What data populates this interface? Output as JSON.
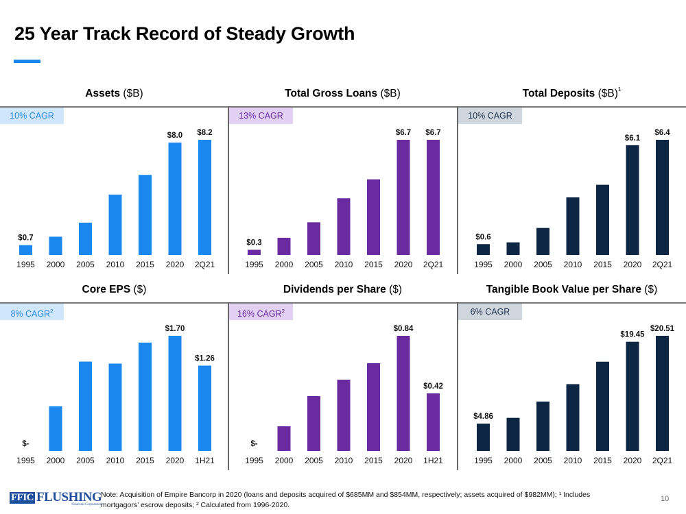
{
  "page": {
    "title": "25 Year Track Record of Steady Growth",
    "page_number": "10",
    "footnote_line1": "Note: Acquisition of Empire Bancorp in 2020 (loans and deposits acquired of $685MM and $854MM, respectively; assets acquired of $982MM); ¹ Includes",
    "footnote_line2": "mortgagors’ escrow deposits; ² Calculated from 1996-2020.",
    "logo": {
      "mark": "FFIC",
      "name": "FLUSHING",
      "sub": "Financial Corporation"
    }
  },
  "colors": {
    "blue": "#1a88ee",
    "purple": "#6a2aa0",
    "navy": "#0d2644",
    "badge_blue_bg": "#cfe6fb",
    "badge_blue_fg": "#2b8be0",
    "badge_purple_bg": "#e2d0f3",
    "badge_purple_fg": "#6a2aa0",
    "badge_gray_bg": "#cfd6dd",
    "badge_gray_fg": "#1f3550"
  },
  "chart_data": [
    {
      "type": "bar",
      "title": "Assets",
      "unit": "($B)",
      "footnote_mark": "",
      "badge": "10% CAGR",
      "badge_sup": "",
      "categories": [
        "1995",
        "2000",
        "2005",
        "2010",
        "2015",
        "2020",
        "2Q21"
      ],
      "values": [
        0.7,
        1.3,
        2.3,
        4.3,
        5.7,
        8.0,
        8.2
      ],
      "labels": [
        "$0.7",
        "",
        "",
        "",
        "",
        "$8.0",
        "$8.2"
      ],
      "color_key": "blue",
      "badge_key": "blue",
      "ylim": [
        0,
        8.2
      ]
    },
    {
      "type": "bar",
      "title": "Total Gross Loans",
      "unit": "($B)",
      "footnote_mark": "",
      "badge": "13% CAGR",
      "badge_sup": "",
      "categories": [
        "1995",
        "2000",
        "2005",
        "2010",
        "2015",
        "2020",
        "2Q21"
      ],
      "values": [
        0.3,
        1.0,
        1.9,
        3.3,
        4.4,
        6.7,
        6.7
      ],
      "labels": [
        "$0.3",
        "",
        "",
        "",
        "",
        "$6.7",
        "$6.7"
      ],
      "color_key": "purple",
      "badge_key": "purple",
      "ylim": [
        0,
        6.7
      ]
    },
    {
      "type": "bar",
      "title": "Total Deposits",
      "unit": "($B)",
      "footnote_mark": "1",
      "badge": "10% CAGR",
      "badge_sup": "",
      "categories": [
        "1995",
        "2000",
        "2005",
        "2010",
        "2015",
        "2020",
        "2Q21"
      ],
      "values": [
        0.6,
        0.7,
        1.5,
        3.2,
        3.9,
        6.1,
        6.4
      ],
      "labels": [
        "$0.6",
        "",
        "",
        "",
        "",
        "$6.1",
        "$6.4"
      ],
      "color_key": "navy",
      "badge_key": "gray",
      "ylim": [
        0,
        6.4
      ]
    },
    {
      "type": "bar",
      "title": "Core EPS",
      "unit": "($)",
      "footnote_mark": "",
      "badge": "8% CAGR",
      "badge_sup": "2",
      "categories": [
        "1995",
        "2000",
        "2005",
        "2010",
        "2015",
        "2020",
        "1H21"
      ],
      "values": [
        0,
        0.66,
        1.32,
        1.29,
        1.6,
        1.7,
        1.26
      ],
      "labels": [
        "$-",
        "",
        "",
        "",
        "",
        "$1.70",
        "$1.26"
      ],
      "color_key": "blue",
      "badge_key": "blue",
      "ylim": [
        0,
        1.7
      ]
    },
    {
      "type": "bar",
      "title": "Dividends per Share",
      "unit": "($)",
      "footnote_mark": "",
      "badge": "16% CAGR",
      "badge_sup": "2",
      "categories": [
        "1995",
        "2000",
        "2005",
        "2010",
        "2015",
        "2020",
        "1H21"
      ],
      "values": [
        0,
        0.18,
        0.4,
        0.52,
        0.64,
        0.84,
        0.42
      ],
      "labels": [
        "$-",
        "",
        "",
        "",
        "",
        "$0.84",
        "$0.42"
      ],
      "color_key": "purple",
      "badge_key": "purple",
      "ylim": [
        0,
        0.84
      ]
    },
    {
      "type": "bar",
      "title": "Tangible Book Value per Share",
      "unit": "($)",
      "footnote_mark": "",
      "badge": "6% CAGR",
      "badge_sup": "",
      "categories": [
        "1995",
        "2000",
        "2005",
        "2010",
        "2015",
        "2020",
        "2Q21"
      ],
      "values": [
        4.86,
        5.9,
        8.8,
        11.9,
        15.9,
        19.45,
        20.51
      ],
      "labels": [
        "$4.86",
        "",
        "",
        "",
        "",
        "$19.45",
        "$20.51"
      ],
      "color_key": "navy",
      "badge_key": "gray",
      "ylim": [
        0,
        20.51
      ]
    }
  ]
}
